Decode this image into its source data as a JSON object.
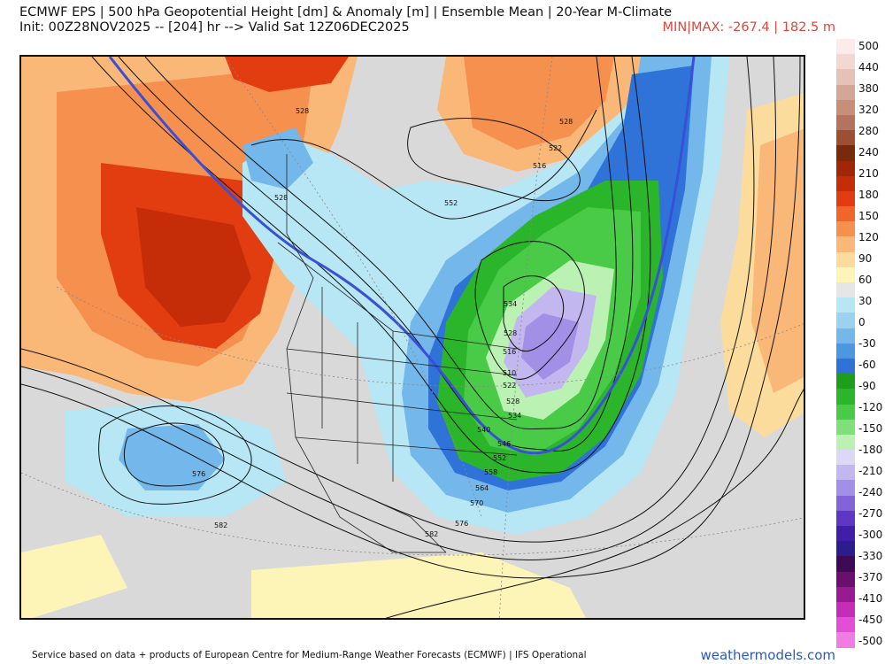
{
  "header": {
    "title_line1": "ECMWF EPS | 500 hPa Geopotential Height [dm] & Anomaly [m] | Ensemble Mean | 20-Year M-Climate",
    "title_line2": "Init: 00Z28NOV2025 -- [204] hr --> Valid Sat 12Z06DEC2025",
    "minmax": "MIN|MAX: -267.4 | 182.5 m"
  },
  "colors": {
    "minmax_text": "#e0453a",
    "brand_text": "#2957c9"
  },
  "colorbar": {
    "labels": [
      "500",
      "440",
      "380",
      "320",
      "280",
      "240",
      "210",
      "180",
      "150",
      "120",
      "90",
      "60",
      "30",
      "0",
      "-30",
      "-60",
      "-90",
      "-120",
      "-150",
      "-180",
      "-210",
      "-240",
      "-270",
      "-300",
      "-330",
      "-370",
      "-410",
      "-450",
      "-500"
    ],
    "colors": [
      "#fcebea",
      "#f3d8d2",
      "#e5c2b7",
      "#d4a697",
      "#c78e7a",
      "#b5735d",
      "#9b4f33",
      "#7a2a0c",
      "#a02608",
      "#c42d07",
      "#e23d10",
      "#f2652a",
      "#f6904e",
      "#f9b878",
      "#fbdc9c",
      "#fdf4b8",
      "#e6e6e6",
      "#b7e6f4",
      "#9bd2f0",
      "#74b7ea",
      "#4d96e0",
      "#2f72d8",
      "#1f9e1e",
      "#2bb52b",
      "#49cb48",
      "#7fe07a",
      "#bcf1b4",
      "#ddd8f5",
      "#c2b8ef",
      "#a190e6",
      "#8064d8",
      "#5e38c4",
      "#3f1fa8",
      "#2c1c8c",
      "#3f0a55",
      "#6a0f6e",
      "#981a93",
      "#c52cb8",
      "#e24ed6",
      "#f07de4"
    ]
  },
  "map": {
    "contour_labels": [
      "528",
      "528",
      "522",
      "516",
      "528",
      "552",
      "534",
      "528",
      "516",
      "510",
      "522",
      "528",
      "534",
      "540",
      "546",
      "552",
      "558",
      "564",
      "570",
      "576",
      "576",
      "582",
      "582"
    ]
  },
  "footer": {
    "credit": "Service based on data + products of European Centre for Medium-Range Weather Forecasts (ECMWF) | IFS Operational",
    "brand": "weathermodels.com"
  }
}
